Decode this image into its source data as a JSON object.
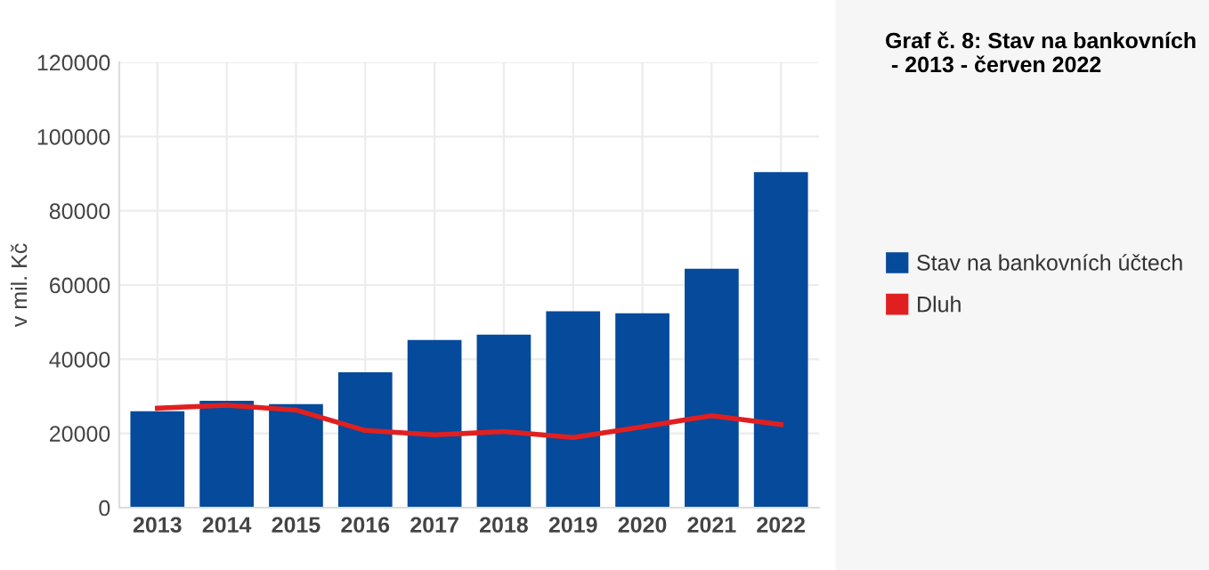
{
  "chart_data": {
    "type": "bar",
    "title": "Graf č. 8: Stav na bankovních\n - 2013 - červen 2022",
    "ylabel": "v mil. Kč",
    "categories": [
      "2013",
      "2014",
      "2015",
      "2016",
      "2017",
      "2018",
      "2019",
      "2020",
      "2021",
      "2022"
    ],
    "series": [
      {
        "name": "Stav na bankovních účtech",
        "color": "#054a9b",
        "values": [
          26000,
          28800,
          27900,
          36500,
          45200,
          46600,
          52900,
          52400,
          64400,
          90400
        ]
      },
      {
        "name": "Dluh",
        "type": "line",
        "color": "#e02020",
        "values": [
          26800,
          27600,
          26300,
          20800,
          19600,
          20500,
          18900,
          21800,
          24800,
          22400
        ]
      }
    ],
    "ylim": [
      0,
      120000
    ],
    "yticks": [
      0,
      20000,
      40000,
      60000,
      80000,
      100000,
      120000
    ],
    "grid": true,
    "legend": "right",
    "marker": "none"
  }
}
